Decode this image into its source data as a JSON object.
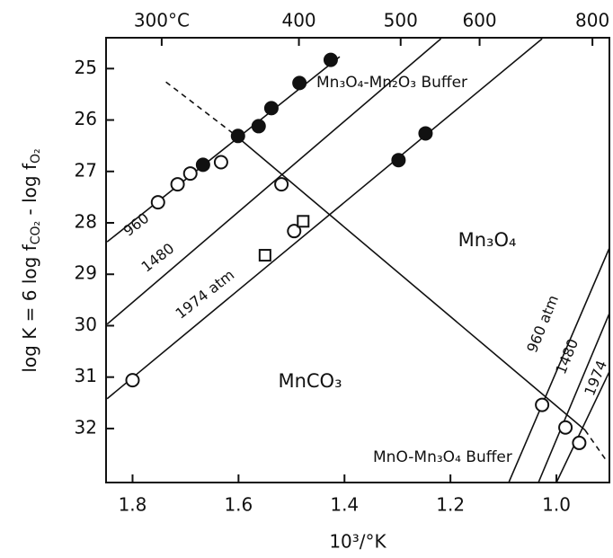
{
  "chart_data": {
    "type": "line",
    "xlabel": "10³/°K",
    "ylabel": [
      "log K = 6 log f",
      "CO₂",
      " - log f",
      "O₂"
    ],
    "xlim": [
      1.85,
      0.9
    ],
    "ylim": [
      24.4,
      33.05
    ],
    "xticks": [
      1.8,
      1.6,
      1.4,
      1.2,
      {
        "value": 1,
        "label": "1.0"
      }
    ],
    "yticks": [
      25,
      26,
      27,
      28,
      29,
      30,
      31,
      32
    ],
    "x2ticks": [
      {
        "value": 1.745,
        "label": "300°C"
      },
      {
        "value": 1.486,
        "label": "400"
      },
      {
        "value": 1.294,
        "label": "500"
      },
      {
        "value": 1.145,
        "label": "600"
      },
      {
        "value": 0.932,
        "label": "800"
      }
    ],
    "color": "#111111",
    "series": [
      {
        "label": "960",
        "style": "solid",
        "x": [
          1.848,
          1.409
        ],
        "values": [
          28.37,
          24.77
        ]
      },
      {
        "label": "1480",
        "style": "solid",
        "x": [
          1.848,
          1.218
        ],
        "values": [
          29.97,
          24.42
        ]
      },
      {
        "label": "1974 atm",
        "style": "solid",
        "x": [
          1.848,
          1.027
        ],
        "values": [
          31.42,
          24.42
        ]
      },
      {
        "style": "dashed",
        "x": [
          1.737,
          1.609
        ],
        "values": [
          25.26,
          26.27
        ]
      },
      {
        "style": "solid",
        "x": [
          1.609,
          0.946
        ],
        "values": [
          26.27,
          32.03
        ]
      },
      {
        "style": "dashed",
        "x": [
          0.946,
          0.908
        ],
        "values": [
          32.03,
          32.59
        ]
      },
      {
        "label": "960 atm",
        "style": "solid",
        "x": [
          1.09,
          0.898
        ],
        "values": [
          33.05,
          28.44
        ]
      },
      {
        "label": "1480",
        "style": "solid",
        "x": [
          1.034,
          0.898
        ],
        "values": [
          33.05,
          29.71
        ]
      },
      {
        "label": "1974",
        "style": "solid",
        "x": [
          1.0,
          0.898
        ],
        "values": [
          33.05,
          30.85
        ]
      },
      {
        "marker": "filled-circle",
        "x": [
          1.426,
          1.485,
          1.538,
          1.562,
          1.601,
          1.667,
          1.298,
          1.247
        ],
        "values": [
          24.83,
          25.28,
          25.77,
          26.12,
          26.31,
          26.87,
          26.78,
          26.26
        ]
      },
      {
        "marker": "open-circle",
        "x": [
          1.8,
          1.752,
          1.715,
          1.691,
          1.633,
          1.519,
          1.495,
          1.027,
          0.983,
          0.957
        ],
        "values": [
          31.06,
          27.6,
          27.25,
          27.04,
          26.82,
          27.25,
          28.16,
          31.54,
          31.98,
          32.28
        ]
      },
      {
        "marker": "open-square",
        "x": [
          1.55,
          1.478
        ],
        "values": [
          28.63,
          27.97
        ]
      }
    ],
    "annotations": [
      "Mn₃O₄-Mn₂O₃  Buffer",
      "Mn₃O₄",
      "MnCO₃",
      "MnO-Mn₃O₄  Buffer"
    ]
  }
}
